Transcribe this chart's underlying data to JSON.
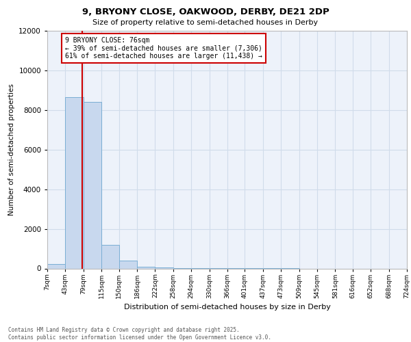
{
  "title_line1": "9, BRYONY CLOSE, OAKWOOD, DERBY, DE21 2DP",
  "title_line2": "Size of property relative to semi-detached houses in Derby",
  "xlabel": "Distribution of semi-detached houses by size in Derby",
  "ylabel": "Number of semi-detached properties",
  "property_size": 76,
  "property_label": "9 BRYONY CLOSE: 76sqm",
  "pct_smaller": 39,
  "pct_larger": 61,
  "count_smaller": 7306,
  "count_larger": 11438,
  "bin_edges": [
    7,
    43,
    79,
    115,
    150,
    186,
    222,
    258,
    294,
    330,
    366,
    401,
    437,
    473,
    509,
    545,
    581,
    616,
    652,
    688,
    724
  ],
  "bin_labels": [
    "7sqm",
    "43sqm",
    "79sqm",
    "115sqm",
    "150sqm",
    "186sqm",
    "222sqm",
    "258sqm",
    "294sqm",
    "330sqm",
    "366sqm",
    "401sqm",
    "437sqm",
    "473sqm",
    "509sqm",
    "545sqm",
    "581sqm",
    "616sqm",
    "652sqm",
    "688sqm",
    "724sqm"
  ],
  "bar_values": [
    220,
    8650,
    8400,
    1200,
    380,
    100,
    50,
    15,
    8,
    4,
    2,
    1,
    1,
    1,
    0,
    0,
    0,
    0,
    0,
    0
  ],
  "bar_color": "#c8d8ee",
  "bar_edge_color": "#7aaed4",
  "grid_color": "#d0dcea",
  "background_color": "#edf2fa",
  "red_line_color": "#cc0000",
  "annotation_box_color": "#ffffff",
  "annotation_box_edge": "#cc0000",
  "ylim": [
    0,
    12000
  ],
  "yticks": [
    0,
    2000,
    4000,
    6000,
    8000,
    10000,
    12000
  ],
  "footer_line1": "Contains HM Land Registry data © Crown copyright and database right 2025.",
  "footer_line2": "Contains public sector information licensed under the Open Government Licence v3.0."
}
